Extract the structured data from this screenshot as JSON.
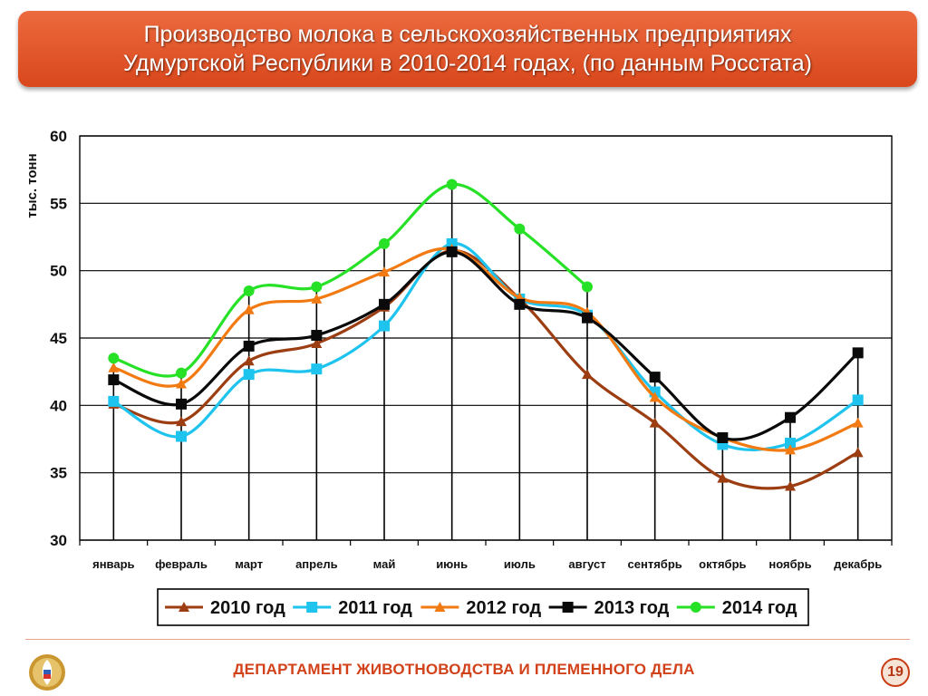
{
  "slide": {
    "title_line1": "Производство молока в сельскохозяйственных предприятиях",
    "title_line2": "Удмуртской Республики в 2010-2014 годах, (по данным Росстата)",
    "footer": "ДЕПАРТАМЕНТ ЖИВОТНОВОДСТВА И ПЛЕМЕННОГО ДЕЛА",
    "page_number": "19"
  },
  "chart_data": {
    "type": "line",
    "title": "",
    "xlabel": "",
    "ylabel": "тыс. тонн",
    "ylim": [
      30,
      60
    ],
    "yticks": [
      30,
      35,
      40,
      45,
      50,
      55,
      60
    ],
    "grid": true,
    "legend_position": "bottom",
    "categories": [
      "январь",
      "февраль",
      "март",
      "апрель",
      "май",
      "июнь",
      "июль",
      "август",
      "сентябрь",
      "октябрь",
      "ноябрь",
      "декабрь"
    ],
    "series": [
      {
        "name": "2010 год",
        "color": "#9c3d12",
        "marker": "triangle",
        "values": [
          40.1,
          38.8,
          43.3,
          44.6,
          47.3,
          51.5,
          47.9,
          42.3,
          38.7,
          34.6,
          34.0,
          36.5
        ]
      },
      {
        "name": "2011 год",
        "color": "#1fc4ee",
        "marker": "square",
        "values": [
          40.3,
          37.7,
          42.3,
          42.7,
          45.9,
          52.0,
          47.9,
          46.7,
          41.0,
          37.1,
          37.2,
          40.4
        ]
      },
      {
        "name": "2012 год",
        "color": "#f27a12",
        "marker": "triangle",
        "values": [
          42.8,
          41.6,
          47.1,
          47.9,
          49.9,
          51.6,
          48.0,
          46.9,
          40.6,
          37.6,
          36.7,
          38.7
        ]
      },
      {
        "name": "2013 год",
        "color": "#0a0a0a",
        "marker": "square",
        "values": [
          41.9,
          40.1,
          44.4,
          45.2,
          47.5,
          51.4,
          47.5,
          46.5,
          42.1,
          37.6,
          39.1,
          43.9
        ]
      },
      {
        "name": "2014 год",
        "color": "#27e127",
        "marker": "circle",
        "values": [
          43.5,
          42.4,
          48.5,
          48.8,
          52.0,
          56.4,
          53.1,
          48.8,
          null,
          null,
          null,
          null
        ]
      }
    ]
  }
}
